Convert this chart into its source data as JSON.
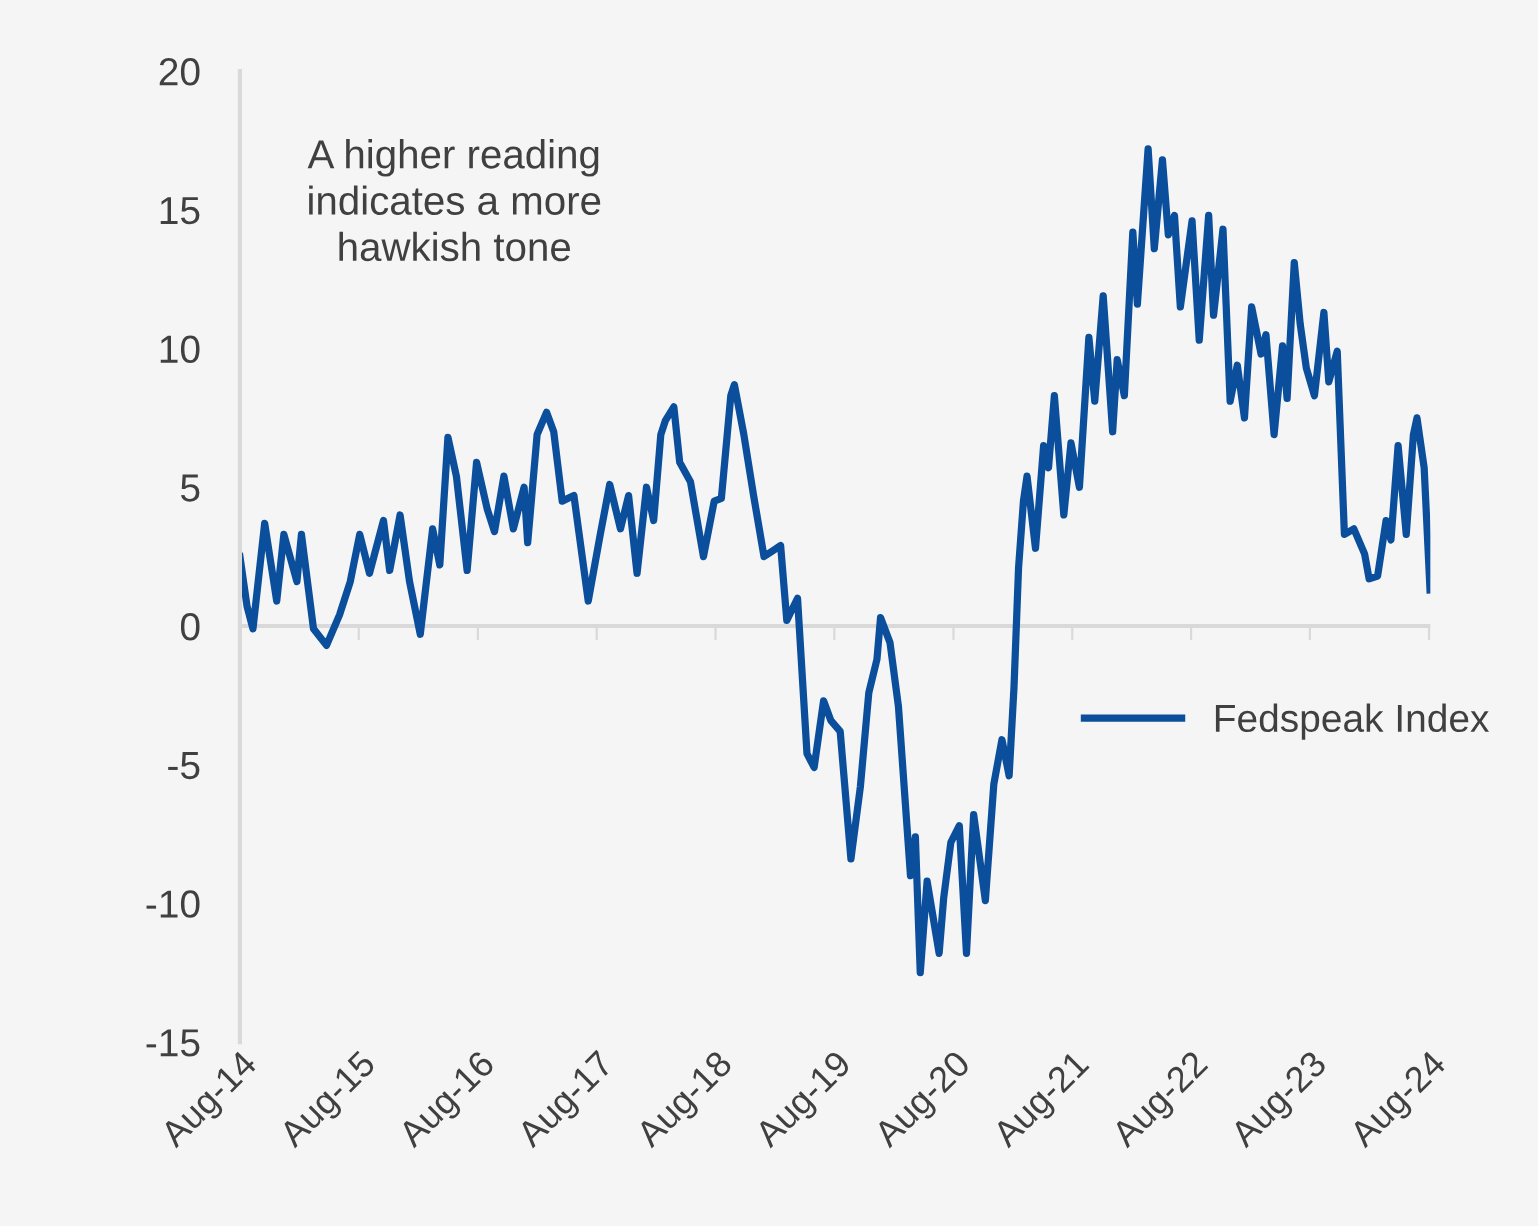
{
  "chart_data": {
    "type": "line",
    "xlim": [
      "2014-08-01",
      "2024-08-05"
    ],
    "ylim": [
      -15,
      20
    ],
    "yticks": [
      -15,
      -10,
      -5,
      0,
      5,
      10,
      15,
      20
    ],
    "xticks": [
      {
        "value": "2014-08-01",
        "label": "Aug-14"
      },
      {
        "value": "2015-08-01",
        "label": "Aug-15"
      },
      {
        "value": "2016-08-01",
        "label": "Aug-16"
      },
      {
        "value": "2017-08-01",
        "label": "Aug-17"
      },
      {
        "value": "2018-08-01",
        "label": "Aug-18"
      },
      {
        "value": "2019-08-01",
        "label": "Aug-19"
      },
      {
        "value": "2020-08-01",
        "label": "Aug-20"
      },
      {
        "value": "2021-08-01",
        "label": "Aug-21"
      },
      {
        "value": "2022-08-01",
        "label": "Aug-22"
      },
      {
        "value": "2023-08-01",
        "label": "Aug-23"
      },
      {
        "value": "2024-08-01",
        "label": "Aug-24"
      }
    ],
    "annotations": [
      "A higher reading\nindicates a more\nhawkish tone"
    ],
    "legend": "right",
    "grid": false,
    "ref_lines": [
      {
        "axis": "y",
        "value": 0,
        "color": "#d9d9d9"
      }
    ],
    "marker": "none",
    "line_style": "solid",
    "series": [
      {
        "name": "Fedspeak Index",
        "color": "#0b4f9c",
        "x": [
          "2014-08-01",
          "2014-08-23",
          "2014-09-10",
          "2014-10-16",
          "2014-11-22",
          "2014-12-14",
          "2015-01-23",
          "2015-02-06",
          "2015-03-15",
          "2015-04-24",
          "2015-06-03",
          "2015-07-06",
          "2015-08-04",
          "2015-09-03",
          "2015-10-16",
          "2015-11-04",
          "2015-12-06",
          "2016-01-04",
          "2016-02-06",
          "2016-03-15",
          "2016-04-06",
          "2016-05-01",
          "2016-05-27",
          "2016-06-29",
          "2016-07-28",
          "2016-08-30",
          "2016-09-21",
          "2016-10-20",
          "2016-11-18",
          "2016-12-21",
          "2017-01-01",
          "2017-01-30",
          "2017-02-28",
          "2017-03-22",
          "2017-04-17",
          "2017-05-23",
          "2017-07-06",
          "2017-08-12",
          "2017-09-10",
          "2017-10-13",
          "2017-11-07",
          "2017-12-03",
          "2018-01-01",
          "2018-01-23",
          "2018-02-14",
          "2018-02-28",
          "2018-03-26",
          "2018-04-13",
          "2018-05-16",
          "2018-06-25",
          "2018-07-28",
          "2018-08-19",
          "2018-09-17",
          "2018-09-28",
          "2018-10-27",
          "2018-11-26",
          "2018-12-28",
          "2019-01-23",
          "2019-02-17",
          "2019-03-08",
          "2019-04-10",
          "2019-05-09",
          "2019-05-31",
          "2019-06-29",
          "2019-07-21",
          "2019-08-19",
          "2019-09-21",
          "2019-10-20",
          "2019-11-15",
          "2019-12-10",
          "2019-12-21",
          "2020-01-19",
          "2020-02-14",
          "2020-03-22",
          "2020-04-06",
          "2020-04-21",
          "2020-05-12",
          "2020-06-18",
          "2020-07-02",
          "2020-07-24",
          "2020-08-19",
          "2020-09-10",
          "2020-10-02",
          "2020-11-07",
          "2020-12-03",
          "2020-12-28",
          "2021-01-19",
          "2021-02-03",
          "2021-02-17",
          "2021-03-04",
          "2021-03-15",
          "2021-04-10",
          "2021-05-05",
          "2021-05-20",
          "2021-06-07",
          "2021-07-06",
          "2021-07-28",
          "2021-08-23",
          "2021-09-21",
          "2021-10-09",
          "2021-11-04",
          "2021-12-03",
          "2021-12-17",
          "2022-01-08",
          "2022-02-03",
          "2022-02-17",
          "2022-03-22",
          "2022-04-10",
          "2022-05-05",
          "2022-05-23",
          "2022-06-11",
          "2022-06-29",
          "2022-08-04",
          "2022-08-26",
          "2022-09-24",
          "2022-10-09",
          "2022-11-07",
          "2022-11-29",
          "2022-12-21",
          "2023-01-12",
          "2023-02-03",
          "2023-03-04",
          "2023-03-19",
          "2023-04-13",
          "2023-05-09",
          "2023-05-23",
          "2023-06-14",
          "2023-07-02",
          "2023-07-21",
          "2023-08-15",
          "2023-09-13",
          "2023-09-28",
          "2023-10-24",
          "2023-11-15",
          "2023-12-14",
          "2024-01-16",
          "2024-01-30",
          "2024-02-25",
          "2024-03-22",
          "2024-04-06",
          "2024-04-28",
          "2024-05-23",
          "2024-06-14",
          "2024-06-25",
          "2024-07-17",
          "2024-08-04"
        ],
        "values": [
          2.5,
          0.7,
          -0.1,
          3.7,
          0.9,
          3.3,
          1.6,
          3.3,
          -0.1,
          -0.7,
          0.4,
          1.6,
          3.3,
          1.9,
          3.8,
          2.0,
          4.0,
          1.6,
          -0.3,
          3.5,
          2.2,
          6.8,
          5.4,
          2.0,
          5.9,
          4.2,
          3.4,
          5.4,
          3.5,
          5.0,
          3.0,
          6.9,
          7.7,
          7.0,
          4.5,
          4.7,
          0.9,
          3.3,
          5.1,
          3.5,
          4.7,
          1.9,
          5.0,
          3.8,
          6.9,
          7.4,
          7.9,
          5.9,
          5.2,
          2.5,
          4.5,
          4.6,
          8.3,
          8.7,
          6.9,
          4.7,
          2.5,
          2.7,
          2.9,
          0.2,
          1.0,
          -4.6,
          -5.1,
          -2.7,
          -3.4,
          -3.8,
          -8.4,
          -5.8,
          -2.4,
          -1.2,
          0.3,
          -0.6,
          -2.9,
          -9.0,
          -7.6,
          -12.5,
          -9.2,
          -11.8,
          -9.8,
          -7.8,
          -7.2,
          -11.8,
          -6.8,
          -9.9,
          -5.7,
          -4.1,
          -5.4,
          -2.2,
          2.1,
          4.5,
          5.4,
          2.8,
          6.5,
          5.7,
          8.3,
          4.0,
          6.6,
          5.0,
          10.4,
          8.1,
          11.9,
          7.0,
          9.6,
          8.3,
          14.2,
          11.6,
          17.2,
          13.6,
          16.8,
          14.1,
          14.8,
          11.5,
          14.6,
          10.3,
          14.8,
          11.2,
          14.3,
          8.1,
          9.4,
          7.5,
          11.5,
          9.8,
          10.5,
          6.9,
          10.1,
          8.2,
          13.1,
          10.9,
          9.3,
          8.3,
          11.3,
          8.8,
          9.9,
          3.3,
          3.5,
          2.6,
          1.7,
          1.8,
          3.8,
          3.1,
          6.5,
          3.3,
          6.9,
          7.5,
          5.7,
          1.3
        ]
      }
    ]
  }
}
